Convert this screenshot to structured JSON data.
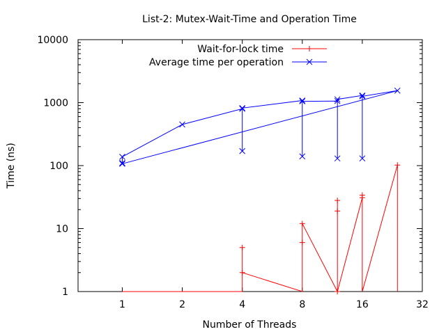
{
  "chart_data": {
    "type": "line",
    "title": "List-2: Mutex-Wait-Time and Operation Time",
    "xlabel": "Number of Threads",
    "ylabel": "Time (ns)",
    "x_scale": "log2",
    "y_scale": "log10",
    "xlim": [
      0.6,
      32
    ],
    "ylim": [
      1,
      10000
    ],
    "x_ticks": [
      1,
      2,
      4,
      8,
      16,
      32
    ],
    "x_tick_labels": [
      "1",
      "2",
      "4",
      "8",
      "16",
      "32"
    ],
    "y_ticks": [
      1,
      10,
      100,
      1000,
      10000
    ],
    "y_tick_labels": [
      "1",
      "10",
      "100",
      "1000",
      "10000"
    ],
    "legend_position": "top-left",
    "grid": false,
    "series": [
      {
        "name": "Wait-for-lock time",
        "color": "#ff0000",
        "marker": "plus",
        "points": [
          [
            1,
            0.75
          ],
          [
            2,
            0.75
          ],
          [
            4,
            0.75
          ],
          [
            4,
            5
          ],
          [
            4,
            2
          ],
          [
            8,
            0.75
          ],
          [
            8,
            6
          ],
          [
            8,
            12
          ],
          [
            12,
            0.75
          ],
          [
            12,
            19
          ],
          [
            12,
            28
          ],
          [
            12,
            1
          ],
          [
            16,
            31
          ],
          [
            16,
            34
          ],
          [
            16,
            0.75
          ],
          [
            24,
            102
          ],
          [
            24,
            0.75
          ]
        ]
      },
      {
        "name": "Average time per operation",
        "color": "#0000ff",
        "marker": "cross",
        "points": [
          [
            1,
            110
          ],
          [
            1,
            138
          ],
          [
            2,
            450
          ],
          [
            4,
            800
          ],
          [
            4,
            170
          ],
          [
            4,
            820
          ],
          [
            8,
            1080
          ],
          [
            8,
            140
          ],
          [
            8,
            1050
          ],
          [
            12,
            1060
          ],
          [
            12,
            130
          ],
          [
            12,
            1130
          ],
          [
            16,
            1300
          ],
          [
            16,
            130
          ],
          [
            16,
            1260
          ],
          [
            24,
            1550
          ],
          [
            1,
            107
          ]
        ]
      }
    ]
  }
}
